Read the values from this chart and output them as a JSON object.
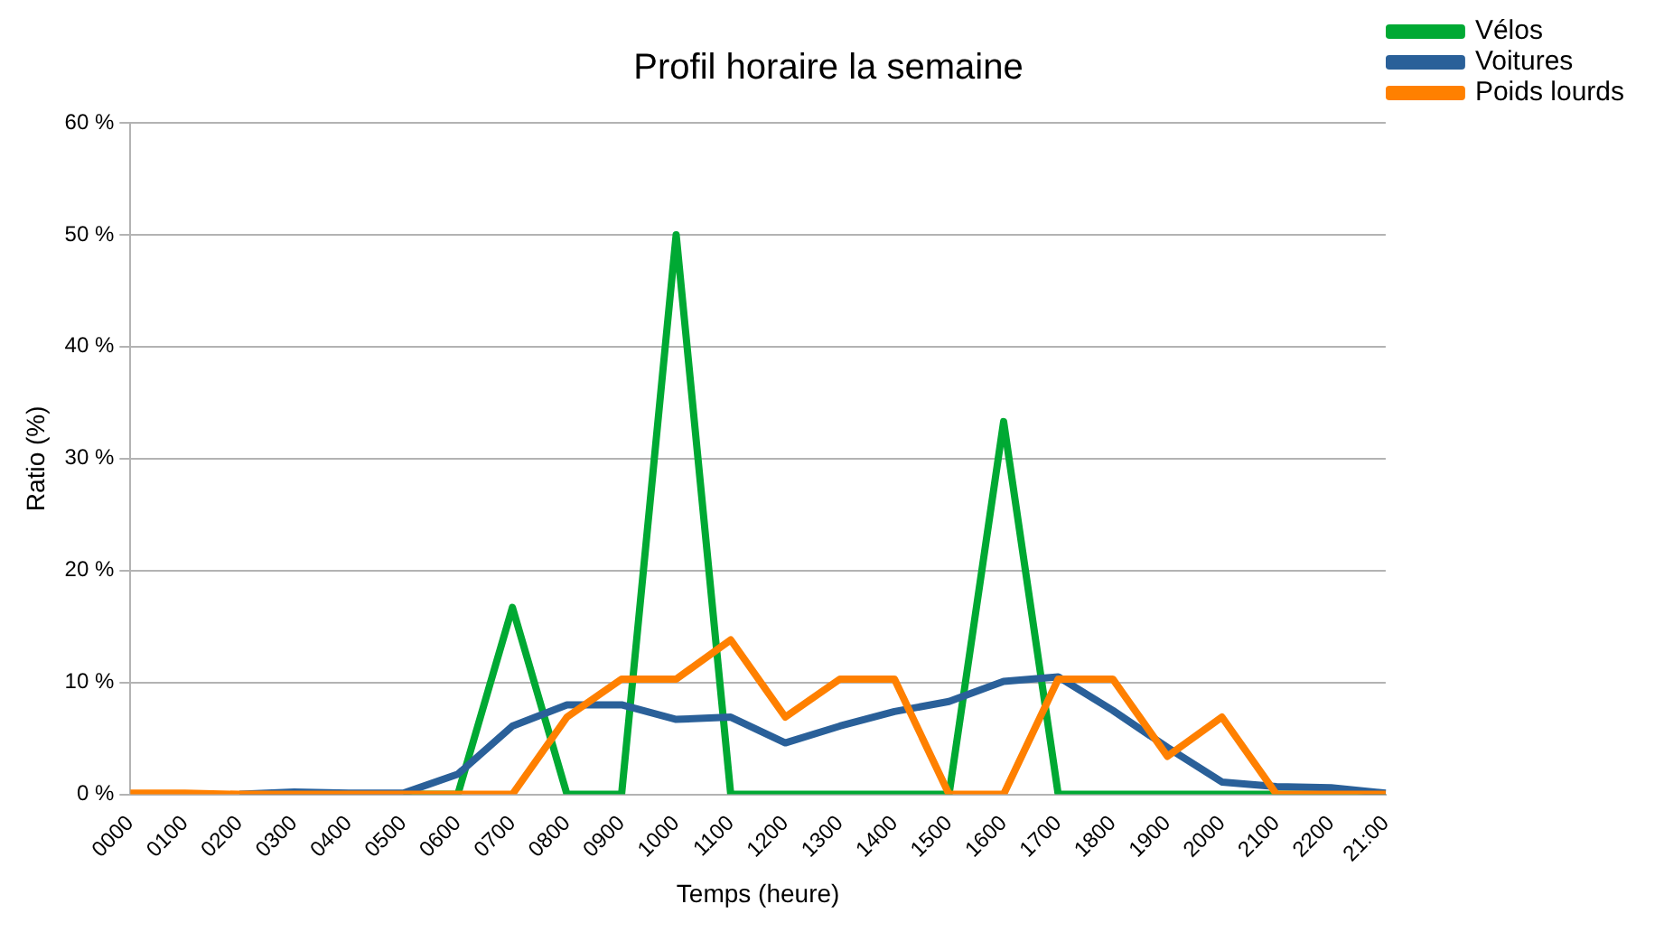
{
  "chart_data": {
    "type": "line",
    "title": "Profil horaire la semaine",
    "xlabel": "Temps (heure)",
    "ylabel": "Ratio (%)",
    "categories": [
      "0000",
      "0100",
      "0200",
      "0300",
      "0400",
      "0500",
      "0600",
      "0700",
      "0800",
      "0900",
      "1000",
      "1100",
      "1200",
      "1300",
      "1400",
      "1500",
      "1600",
      "1700",
      "1800",
      "1900",
      "2000",
      "2100",
      "2200",
      "21:00"
    ],
    "series": [
      {
        "name": "Vélos",
        "color": "#00a933",
        "values": [
          null,
          null,
          null,
          null,
          null,
          0,
          0,
          16.7,
          0,
          0,
          50,
          0,
          0,
          0,
          0,
          0,
          33.3,
          0,
          0,
          0,
          0,
          0,
          0,
          0
        ]
      },
      {
        "name": "Voitures",
        "color": "#2a6099",
        "values": [
          null,
          null,
          0,
          0.2,
          0.1,
          0.1,
          1.8,
          6.1,
          8.0,
          8.0,
          6.7,
          6.9,
          4.6,
          6.1,
          7.4,
          8.3,
          10.1,
          10.5,
          7.5,
          4.2,
          1.1,
          0.7,
          0.6,
          0.1
        ]
      },
      {
        "name": "Poids lourds",
        "color": "#ff8000",
        "values": [
          0.1,
          0.1,
          0,
          0,
          0,
          0,
          0,
          0,
          6.9,
          10.3,
          10.3,
          13.8,
          6.9,
          10.3,
          10.3,
          0,
          0,
          10.3,
          10.3,
          3.4,
          6.9,
          0,
          0,
          0
        ]
      }
    ],
    "ylim": [
      0,
      60
    ],
    "yticks": [
      {
        "value": 0,
        "label": "0 %"
      },
      {
        "value": 10,
        "label": "10 %"
      },
      {
        "value": 20,
        "label": "20 %"
      },
      {
        "value": 30,
        "label": "30 %"
      },
      {
        "value": 40,
        "label": "40 %"
      },
      {
        "value": 50,
        "label": "50 %"
      },
      {
        "value": 60,
        "label": "60 %"
      }
    ],
    "grid": "y",
    "legend": "top right",
    "marker": "none",
    "line_style": "solid"
  }
}
